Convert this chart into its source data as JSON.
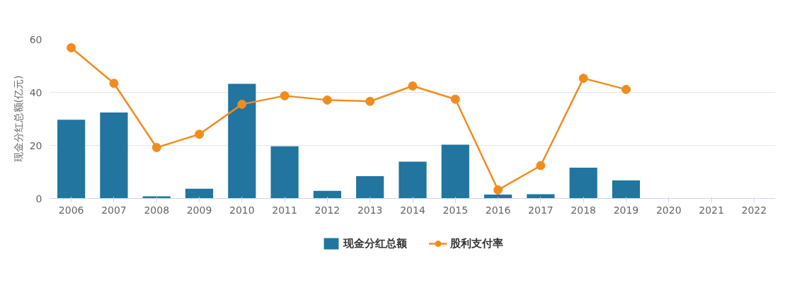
{
  "chart_data": {
    "type": "bar",
    "ylabel": "现金分红总额(亿元)",
    "categories": [
      "2006",
      "2007",
      "2008",
      "2009",
      "2010",
      "2011",
      "2012",
      "2013",
      "2014",
      "2015",
      "2016",
      "2017",
      "2018",
      "2019",
      "2020",
      "2021",
      "2022"
    ],
    "series": [
      {
        "name": "现金分红总额",
        "color": "#21759f",
        "values": [
          29.7,
          32.4,
          0.8,
          3.7,
          43.2,
          19.7,
          2.9,
          8.4,
          13.9,
          20.3,
          1.5,
          1.6,
          11.6,
          6.8,
          null,
          null,
          null
        ]
      },
      {
        "name": "股利支付率",
        "type": "line",
        "color": "#f08c1e",
        "marker": "circle",
        "values": [
          56.8,
          43.4,
          19.2,
          24.2,
          35.5,
          38.7,
          37.1,
          36.6,
          42.4,
          37.4,
          3.2,
          12.4,
          45.3,
          41.1,
          null,
          null,
          null
        ]
      }
    ],
    "ylim": [
      0,
      60
    ],
    "yticks": [
      0,
      20,
      40,
      60
    ],
    "grid": "y",
    "legend": "bottom"
  }
}
